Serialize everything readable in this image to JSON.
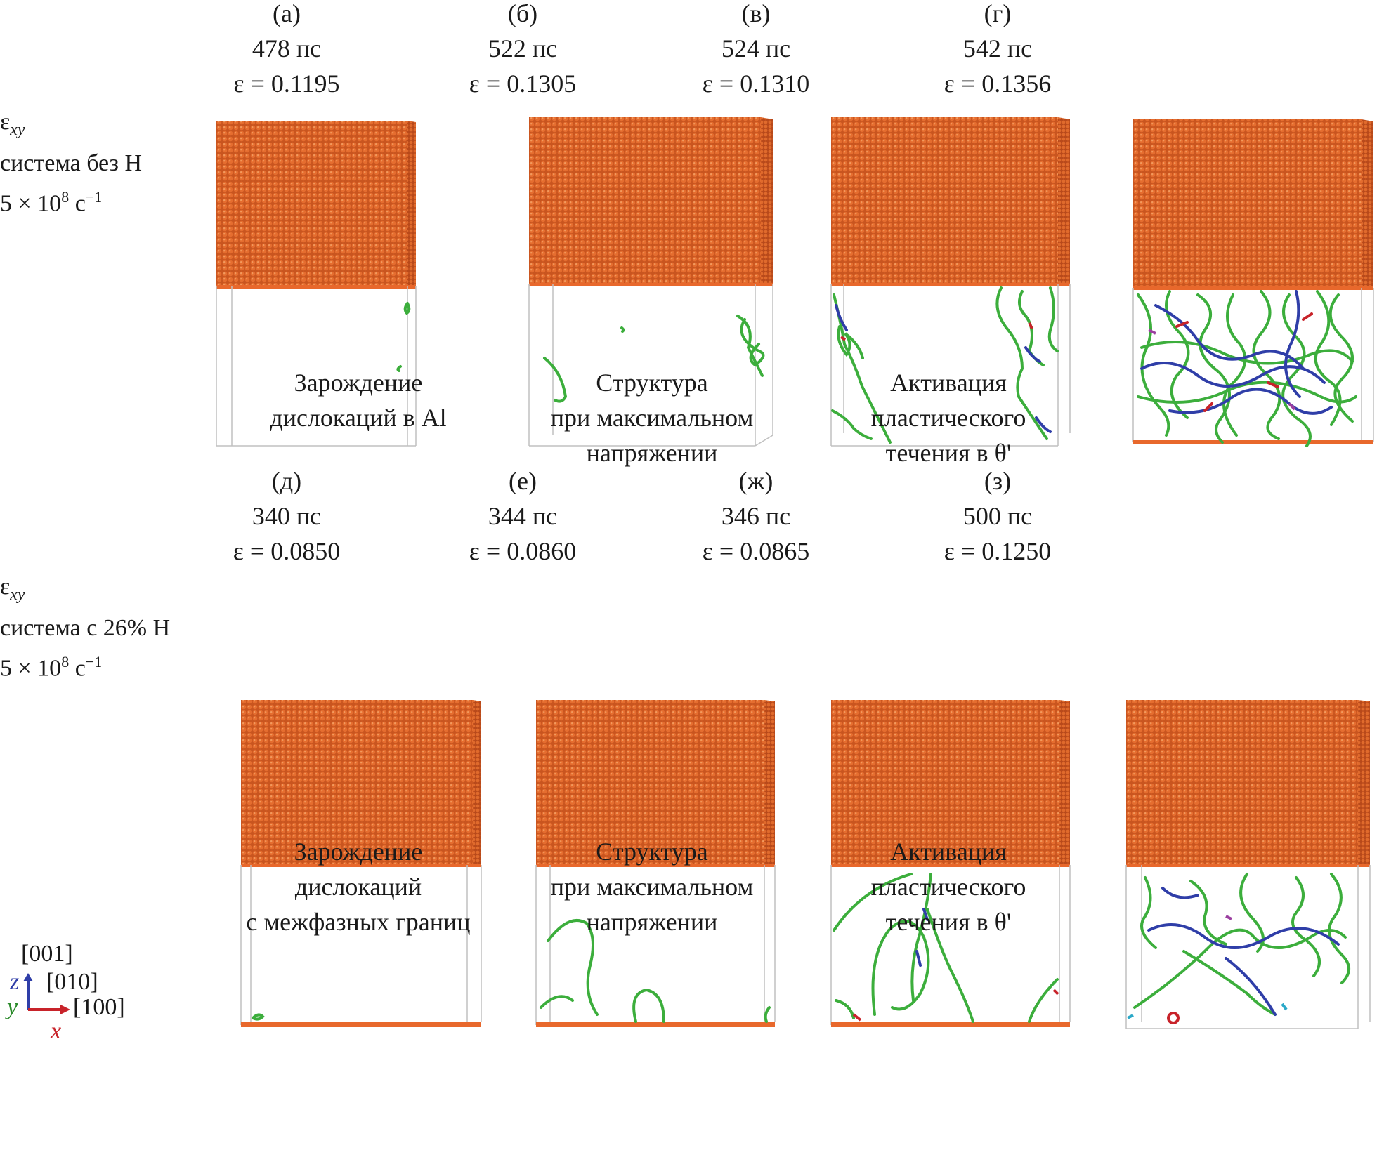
{
  "rows": [
    {
      "label": {
        "eps": "ε",
        "eps_sub": "xy",
        "system": "система без H",
        "rate_base": "5 × 10",
        "rate_exp": "8",
        "rate_unit": " с",
        "rate_unit_exp": "−1"
      },
      "panels": [
        {
          "letter": "(а)",
          "time": "478 пс",
          "strain": "ε = 0.1195",
          "caption": [
            "Зарождение",
            "дислокаций в Al"
          ]
        },
        {
          "letter": "(б)",
          "time": "522 пс",
          "strain": "ε = 0.1305",
          "caption": [
            "Структура",
            "при максимальном",
            "напряжении"
          ]
        },
        {
          "letter": "(в)",
          "time": "524 пс",
          "strain": "ε = 0.1310",
          "caption": [
            "Активация",
            "пластического",
            "течения в θ'"
          ]
        },
        {
          "letter": "(г)",
          "time": "542 пс",
          "strain": "ε = 0.1356",
          "caption": []
        }
      ]
    },
    {
      "label": {
        "eps": "ε",
        "eps_sub": "xy",
        "system": "система с 26% H",
        "rate_base": "5 × 10",
        "rate_exp": "8",
        "rate_unit": " с",
        "rate_unit_exp": "−1"
      },
      "panels": [
        {
          "letter": "(д)",
          "time": "340 пс",
          "strain": "ε = 0.0850",
          "caption": [
            "Зарождение",
            "дислокаций",
            "с межфазных границ"
          ]
        },
        {
          "letter": "(е)",
          "time": "344 пс",
          "strain": "ε = 0.0860",
          "caption": [
            "Структура",
            "при максимальном",
            "напряжении"
          ]
        },
        {
          "letter": "(ж)",
          "time": "346 пс",
          "strain": "ε = 0.0865",
          "caption": [
            "Активация",
            "пластического",
            "течения в θ'"
          ]
        },
        {
          "letter": "(з)",
          "time": "500 пс",
          "strain": "ε = 0.1250",
          "caption": []
        }
      ]
    }
  ],
  "axes": {
    "z_dir": "[001]",
    "y_dir": "[010]",
    "x_dir": "[100]",
    "z": "z",
    "y": "y",
    "x": "x"
  },
  "colors": {
    "precipitate": "#e0642a",
    "dislocation_shockley": "#3cae3c",
    "dislocation_perfect": "#2f3ea8",
    "dislocation_other": "#c8232a",
    "frame": "#bdbdbd"
  }
}
